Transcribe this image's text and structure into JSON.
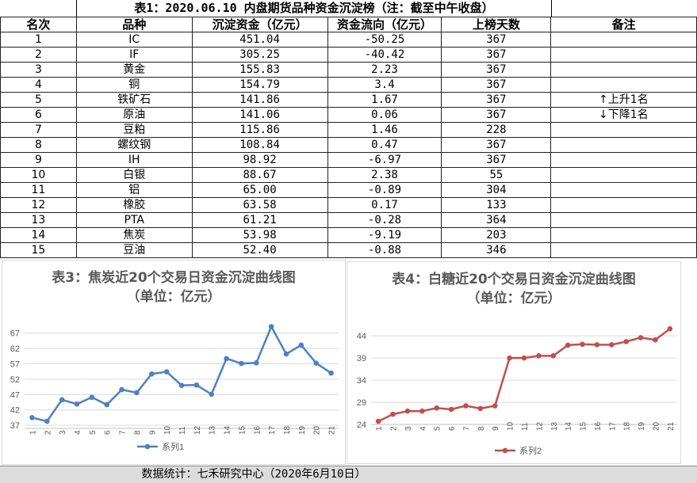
{
  "table": {
    "title": "表1：2020.06.10 内盘期货品种资金沉淀榜（注：截至中午收盘）",
    "headers": [
      "名次",
      "品种",
      "沉淀资金（亿元）",
      "资金流向（亿元）",
      "上榜天数",
      "备注"
    ],
    "rows": [
      [
        "1",
        "IC",
        "451.04",
        "-50.25",
        "367"
      ],
      [
        "2",
        "IF",
        "305.25",
        "-40.42",
        "367"
      ],
      [
        "3",
        "黄金",
        "155.83",
        "2.23",
        "367"
      ],
      [
        "4",
        "铜",
        "154.79",
        "3.4",
        "367"
      ],
      [
        "5",
        "铁矿石",
        "141.86",
        "1.67",
        "367"
      ],
      [
        "6",
        "原油",
        "141.06",
        "0.06",
        "367"
      ],
      [
        "7",
        "豆粕",
        "115.86",
        "1.46",
        "228"
      ],
      [
        "8",
        "螺纹钢",
        "108.84",
        "0.47",
        "367"
      ],
      [
        "9",
        "IH",
        "98.92",
        "-6.97",
        "367"
      ],
      [
        "10",
        "白银",
        "88.67",
        "2.38",
        "55"
      ],
      [
        "11",
        "铝",
        "65.00",
        "-0.89",
        "304"
      ],
      [
        "12",
        "橡胶",
        "63.58",
        "0.17",
        "133"
      ],
      [
        "13",
        "PTA",
        "61.21",
        "-0.28",
        "364"
      ],
      [
        "14",
        "焦炭",
        "53.98",
        "-9.19",
        "203"
      ],
      [
        "15",
        "豆油",
        "52.40",
        "-0.88",
        "346"
      ]
    ],
    "notes": {
      "up": "上升1名",
      "down": "下降1名"
    }
  },
  "colors": {
    "series1": "#4f81bd",
    "series2": "#c0504d"
  },
  "chart_data": [
    {
      "type": "line",
      "title": "表3：焦炭近20个交易日资金沉淀曲线图",
      "subtitle": "（单位：亿元）",
      "categories": [
        "1",
        "2",
        "3",
        "4",
        "5",
        "6",
        "7",
        "8",
        "9",
        "10",
        "11",
        "12",
        "13",
        "14",
        "15",
        "16",
        "17",
        "18",
        "19",
        "20",
        "21"
      ],
      "series": [
        {
          "name": "系列1",
          "values": [
            39.5,
            38.3,
            45.3,
            43.9,
            46.1,
            43.7,
            48.6,
            47.6,
            53.7,
            54.4,
            50.0,
            50.1,
            47.1,
            58.7,
            57.1,
            57.3,
            69.1,
            60.2,
            63.1,
            57.2,
            54.0
          ]
        }
      ],
      "yticks": [
        37,
        42,
        47,
        52,
        57,
        62,
        67
      ],
      "ylim": [
        36,
        70
      ],
      "grid": true,
      "legend": "bottom"
    },
    {
      "type": "line",
      "title": "表4：白糖近20个交易日资金沉淀曲线图",
      "subtitle": "（单位：亿元）",
      "categories": [
        "1",
        "2",
        "3",
        "4",
        "5",
        "6",
        "7",
        "8",
        "9",
        "10",
        "11",
        "12",
        "13",
        "14",
        "15",
        "16",
        "17",
        "18",
        "19",
        "20",
        "21"
      ],
      "series": [
        {
          "name": "系列2",
          "values": [
            24.7,
            26.3,
            27.0,
            27.0,
            27.7,
            27.4,
            28.2,
            27.6,
            28.2,
            39.0,
            39.0,
            39.5,
            39.5,
            41.9,
            42.1,
            42.0,
            42.0,
            42.7,
            43.6,
            43.1,
            45.6
          ]
        }
      ],
      "yticks": [
        24,
        29,
        34,
        39,
        44
      ],
      "ylim": [
        24,
        46
      ],
      "grid": true,
      "legend": "bottom"
    }
  ],
  "footer": "数据统计：七禾研究中心（2020年6月10日）"
}
